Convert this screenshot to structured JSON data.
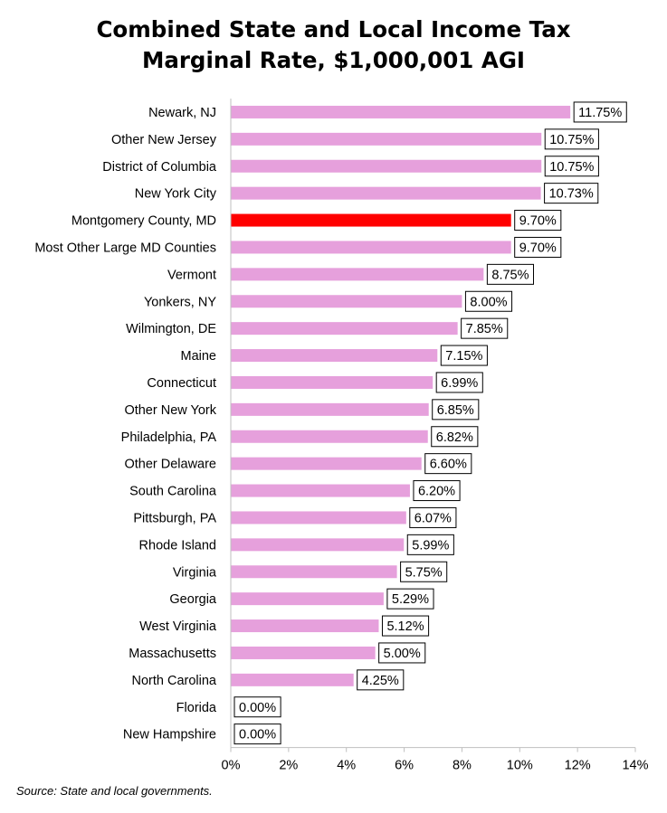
{
  "chart_data": {
    "type": "bar",
    "orientation": "horizontal",
    "title_line1": "Combined State and Local Income Tax",
    "title_line2": "Marginal Rate, $1,000,001 AGI",
    "source": "Source: State and local governments.",
    "categories": [
      "Newark, NJ",
      "Other New Jersey",
      "District of Columbia",
      "New York City",
      "Montgomery County, MD",
      "Most Other Large MD Counties",
      "Vermont",
      "Yonkers, NY",
      "Wilmington, DE",
      "Maine",
      "Connecticut",
      "Other New York",
      "Philadelphia, PA",
      "Other Delaware",
      "South Carolina",
      "Pittsburgh, PA",
      "Rhode Island",
      "Virginia",
      "Georgia",
      "West Virginia",
      "Massachusetts",
      "North Carolina",
      "Florida",
      "New Hampshire"
    ],
    "values": [
      11.75,
      10.75,
      10.75,
      10.73,
      9.7,
      9.7,
      8.75,
      8.0,
      7.85,
      7.15,
      6.99,
      6.85,
      6.82,
      6.6,
      6.2,
      6.07,
      5.99,
      5.75,
      5.29,
      5.12,
      5.0,
      4.25,
      0.0,
      0.0
    ],
    "data_labels": [
      "11.75%",
      "10.75%",
      "10.75%",
      "10.73%",
      "9.70%",
      "9.70%",
      "8.75%",
      "8.00%",
      "7.85%",
      "7.15%",
      "6.99%",
      "6.85%",
      "6.82%",
      "6.60%",
      "6.20%",
      "6.07%",
      "5.99%",
      "5.75%",
      "5.29%",
      "5.12%",
      "5.00%",
      "4.25%",
      "0.00%",
      "0.00%"
    ],
    "highlight_category": "Montgomery County, MD",
    "xlim": [
      0,
      14
    ],
    "xticks": [
      0,
      2,
      4,
      6,
      8,
      10,
      12,
      14
    ],
    "xtick_labels": [
      "0%",
      "2%",
      "4%",
      "6%",
      "8%",
      "10%",
      "12%",
      "14%"
    ],
    "grid": false,
    "legend": "none",
    "colors": {
      "bar": "#e6a0dc",
      "highlight": "#ff0000",
      "axis": "#bfbfbf",
      "label_border": "#000000"
    }
  }
}
